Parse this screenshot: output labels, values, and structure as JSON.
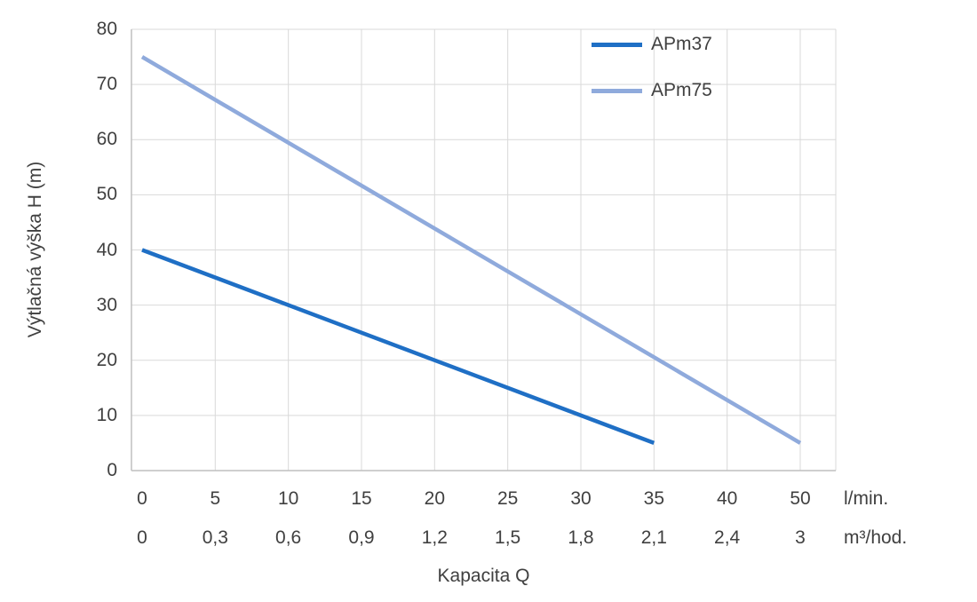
{
  "chart": {
    "y_axis": {
      "title": "Výtlačná výška H (m)",
      "min": 0,
      "max": 80,
      "step": 10,
      "tick_labels": [
        "0",
        "10",
        "20",
        "30",
        "40",
        "50",
        "60",
        "70",
        "80"
      ]
    },
    "x_axis": {
      "title": "Kapacita Q",
      "primary_labels": [
        "0",
        "5",
        "10",
        "15",
        "20",
        "25",
        "30",
        "35",
        "40",
        "50"
      ],
      "primary_unit": "l/min.",
      "secondary_labels": [
        "0",
        "0,3",
        "0,6",
        "0,9",
        "1,2",
        "1,5",
        "1,8",
        "2,1",
        "2,4",
        "3"
      ],
      "secondary_unit": "m³/hod."
    },
    "legend": [
      {
        "label": "APm37",
        "color": "#1F6FC5"
      },
      {
        "label": "APm75",
        "color": "#8FAADC"
      }
    ]
  },
  "chart_data": {
    "type": "line",
    "title": "",
    "xlabel": "Kapacita Q",
    "ylabel": "Výtlačná výška H (m)",
    "ylim": [
      0,
      80
    ],
    "grid": true,
    "legend_position": "top-right",
    "x_categories_lmin": [
      0,
      5,
      10,
      15,
      20,
      25,
      30,
      35,
      40,
      50
    ],
    "x_categories_m3hod": [
      0,
      0.3,
      0.6,
      0.9,
      1.2,
      1.5,
      1.8,
      2.1,
      2.4,
      3
    ],
    "x_axis_note": "evenly spaced category axis; both curves are straight lines between their endpoints",
    "series": [
      {
        "name": "APm37",
        "color": "#1F6FC5",
        "endpoints_lmin_h": [
          [
            0,
            40
          ],
          [
            35,
            5
          ]
        ],
        "values_at_categories": [
          40,
          35,
          30,
          25,
          20,
          15,
          10,
          5,
          null,
          null
        ],
        "points": [
          {
            "ci": 0,
            "h": 40
          },
          {
            "ci": 7,
            "h": 5
          }
        ]
      },
      {
        "name": "APm75",
        "color": "#8FAADC",
        "endpoints_lmin_h": [
          [
            0,
            75
          ],
          [
            50,
            5
          ]
        ],
        "values_at_categories": [
          75,
          67.2,
          59.4,
          51.7,
          43.9,
          36.1,
          28.3,
          20.6,
          12.8,
          5
        ],
        "points": [
          {
            "ci": 0,
            "h": 75
          },
          {
            "ci": 9,
            "h": 5
          }
        ]
      }
    ],
    "plot_style": {
      "gridline_color": "#D9D9D9",
      "axis_color": "#BFBFBF",
      "line_width": 4.5
    }
  }
}
